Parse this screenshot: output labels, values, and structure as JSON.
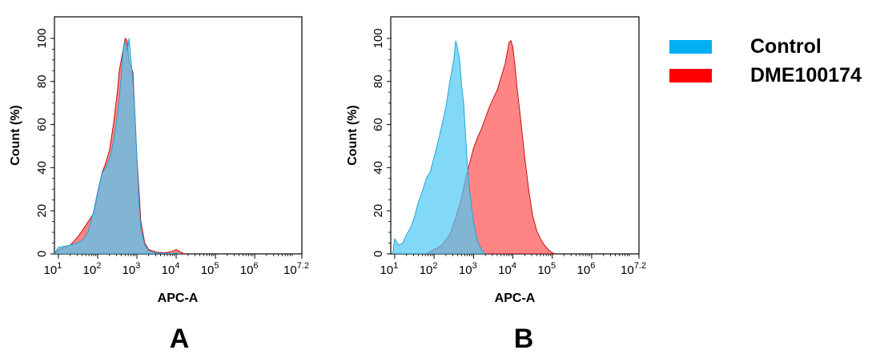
{
  "chart_data": [
    {
      "type": "area",
      "panel_label": "A",
      "xlabel": "APC-A",
      "ylabel": "Count  (%)",
      "xscale": "log",
      "xlim_log10": [
        0.9,
        7.2
      ],
      "ylim": [
        0,
        110
      ],
      "x_ticks": [
        {
          "base": "10",
          "exp": "1",
          "value": 1
        },
        {
          "base": "10",
          "exp": "2",
          "value": 2
        },
        {
          "base": "10",
          "exp": "3",
          "value": 3
        },
        {
          "base": "10",
          "exp": "4",
          "value": 4
        },
        {
          "base": "10",
          "exp": "5",
          "value": 5
        },
        {
          "base": "10",
          "exp": "6",
          "value": 6
        },
        {
          "base": "10",
          "exp": "7.2",
          "value": 7.2
        }
      ],
      "y_ticks": [
        "0",
        "20",
        "40",
        "60",
        "80",
        "100"
      ],
      "series": [
        {
          "name": "Control",
          "x_log10": [
            0.9,
            1.0,
            1.3,
            1.6,
            1.75,
            1.9,
            2.0,
            2.1,
            2.2,
            2.3,
            2.4,
            2.5,
            2.55,
            2.6,
            2.65,
            2.7,
            2.75,
            2.8,
            2.85,
            2.9,
            2.95,
            3.0,
            3.05,
            3.1,
            3.2,
            3.3,
            3.5,
            3.7,
            3.9,
            4.0,
            4.1
          ],
          "y": [
            0,
            3,
            4,
            6,
            10,
            20,
            29,
            37,
            40,
            44,
            52,
            64,
            72,
            83,
            95,
            99,
            94,
            100,
            90,
            80,
            65,
            45,
            25,
            12,
            4,
            1.5,
            0.3,
            0.3,
            0.2,
            0.5,
            0
          ]
        },
        {
          "name": "DME100174",
          "x_log10": [
            0.9,
            1.0,
            1.3,
            1.5,
            1.65,
            1.8,
            1.9,
            2.0,
            2.1,
            2.2,
            2.3,
            2.4,
            2.5,
            2.55,
            2.6,
            2.65,
            2.7,
            2.75,
            2.8,
            2.85,
            2.9,
            2.95,
            3.0,
            3.05,
            3.1,
            3.2,
            3.3,
            3.5,
            3.7,
            3.9,
            4.0,
            4.1,
            4.2
          ],
          "y": [
            0,
            2,
            4,
            8,
            12,
            16,
            19,
            28,
            37,
            42,
            48,
            60,
            75,
            85,
            90,
            95,
            100,
            99,
            89,
            87,
            84,
            65,
            45,
            30,
            15,
            5,
            2,
            0.8,
            0.5,
            1.2,
            2,
            1,
            0
          ]
        }
      ]
    },
    {
      "type": "area",
      "panel_label": "B",
      "xlabel": "APC-A",
      "ylabel": "Count  (%)",
      "xscale": "log",
      "xlim_log10": [
        0.9,
        7.2
      ],
      "ylim": [
        0,
        110
      ],
      "x_ticks": [
        {
          "base": "10",
          "exp": "1",
          "value": 1
        },
        {
          "base": "10",
          "exp": "2",
          "value": 2
        },
        {
          "base": "10",
          "exp": "3",
          "value": 3
        },
        {
          "base": "10",
          "exp": "4",
          "value": 4
        },
        {
          "base": "10",
          "exp": "5",
          "value": 5
        },
        {
          "base": "10",
          "exp": "6",
          "value": 6
        },
        {
          "base": "10",
          "exp": "7.2",
          "value": 7.2
        }
      ],
      "y_ticks": [
        "0",
        "20",
        "40",
        "60",
        "80",
        "100"
      ],
      "series": [
        {
          "name": "Control",
          "x_log10": [
            0.95,
            1.0,
            1.1,
            1.2,
            1.3,
            1.4,
            1.5,
            1.6,
            1.7,
            1.8,
            1.9,
            2.0,
            2.1,
            2.2,
            2.3,
            2.4,
            2.5,
            2.55,
            2.6,
            2.65,
            2.7,
            2.75,
            2.8,
            2.85,
            2.9,
            3.0,
            3.1,
            3.2,
            3.3
          ],
          "y": [
            0,
            7,
            4,
            5,
            9,
            12,
            17,
            24,
            29,
            35,
            38,
            45,
            52,
            60,
            68,
            80,
            90,
            99,
            95,
            90,
            78,
            70,
            55,
            40,
            30,
            15,
            6,
            2,
            0
          ]
        },
        {
          "name": "DME100174",
          "x_log10": [
            1.8,
            2.0,
            2.2,
            2.4,
            2.5,
            2.6,
            2.7,
            2.8,
            2.9,
            3.0,
            3.1,
            3.2,
            3.3,
            3.4,
            3.5,
            3.6,
            3.7,
            3.8,
            3.85,
            3.9,
            3.95,
            4.0,
            4.05,
            4.1,
            4.2,
            4.3,
            4.4,
            4.5,
            4.6,
            4.7,
            4.8,
            4.9,
            5.0,
            5.1
          ],
          "y": [
            0,
            2,
            4,
            9,
            14,
            20,
            26,
            35,
            42,
            49,
            54,
            58,
            63,
            68,
            72,
            76,
            82,
            88,
            93,
            98,
            99,
            96,
            88,
            78,
            62,
            45,
            30,
            18,
            11,
            7,
            4,
            2,
            0.5,
            0
          ]
        }
      ]
    }
  ],
  "legend": {
    "items": [
      {
        "label": "Control",
        "color": "#00b0f0"
      },
      {
        "label": "DME100174",
        "color": "#ff0000"
      }
    ]
  },
  "colors": {
    "control_fill": "#4dc8f4",
    "control_line": "#1a9fd4",
    "sample_fill": "#ff5c5c",
    "sample_line": "#c00000"
  }
}
